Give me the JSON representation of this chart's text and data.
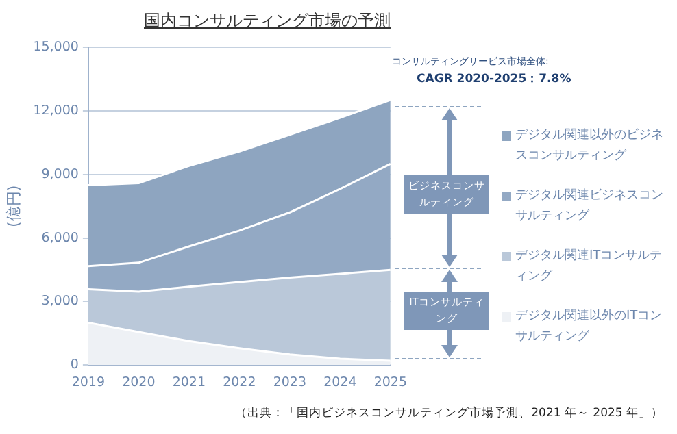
{
  "chart_data": {
    "type": "area",
    "title": "国内コンサルティング市場の予測",
    "ylabel": "(億円)",
    "categories": [
      "2019",
      "2020",
      "2021",
      "2022",
      "2023",
      "2024",
      "2025"
    ],
    "stacked": true,
    "series": [
      {
        "name": "デジタル関連以外のITコンサルティング",
        "color": "#eef1f5",
        "values": [
          2000,
          1560,
          1130,
          790,
          500,
          300,
          200
        ]
      },
      {
        "name": "デジタル関連ITコンサルティング",
        "color": "#bac8d9",
        "values": [
          1580,
          1910,
          2570,
          3130,
          3630,
          4010,
          4290
        ]
      },
      {
        "name": "デジタル関連ビジネスコンサルティング",
        "color": "#93a9c4",
        "values": [
          1090,
          1360,
          1900,
          2430,
          3080,
          4010,
          5010
        ]
      },
      {
        "name": "デジタル関連以外のビジネスコンサルティング",
        "color": "#8ea5c0",
        "values": [
          3830,
          3760,
          3810,
          3740,
          3670,
          3360,
          3020
        ]
      }
    ],
    "ylim": [
      0,
      15000
    ],
    "yticks": [
      {
        "value": 0,
        "label": "0"
      },
      {
        "value": 3000,
        "label": "3,000"
      },
      {
        "value": 6000,
        "label": "6,000"
      },
      {
        "value": 9000,
        "label": "9,000"
      },
      {
        "value": 12000,
        "label": "12,000"
      },
      {
        "value": 15000,
        "label": "15,000"
      }
    ],
    "grid": "y",
    "legend": "right",
    "annotations": [
      "コンサルティングサービス市場全体:",
      "CAGR 2020-2025：7.8%",
      "ビジネスコンサルティング",
      "ITコンサルティング",
      "（出典：「国内ビジネスコンサルティング市場予測、2021 年～ 2025 年」）"
    ]
  }
}
